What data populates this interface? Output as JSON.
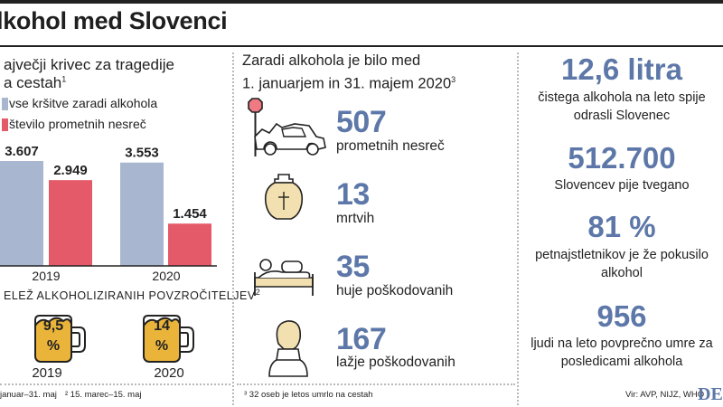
{
  "title": "lkohol med Slovenci",
  "colors": {
    "blue": "#a8b7cf",
    "red": "#e55a68",
    "accent": "#5d78a8"
  },
  "left_panel": {
    "subtitle_line1": "ajvečji krivec za tragedije",
    "subtitle_line2": "a cestah",
    "subtitle_sup": "1",
    "legend": [
      {
        "label": "vse kršitve zaradi alkohola",
        "color": "#a8b7cf"
      },
      {
        "label": "število prometnih nesreč",
        "color": "#e55a68"
      }
    ],
    "section2_title": "ELEŽ ALKOHOLIZIRANIH POVZROČITELJEV",
    "section2_sup": "2",
    "mugs": [
      {
        "value": "9,5 %",
        "year": "2019",
        "percent": 9.5
      },
      {
        "value": "14 %",
        "year": "2020",
        "percent": 14
      }
    ],
    "footnote1": "januar–31. maj",
    "footnote2": "² 15. marec–15. maj"
  },
  "chart_data": {
    "type": "bar",
    "categories": [
      "2019",
      "2020"
    ],
    "series": [
      {
        "name": "vse kršitve zaradi alkohola",
        "values": [
          3607,
          3553
        ],
        "labels": [
          "3.607",
          "3.553"
        ]
      },
      {
        "name": "število prometnih nesreč",
        "values": [
          2949,
          1454
        ],
        "labels": [
          "2.949",
          "1.454"
        ]
      }
    ],
    "ymax": 3607
  },
  "middle_panel": {
    "heading_line1": "Zaradi alkohola je bilo med",
    "heading_line2": "1. januarjem in 31. majem 2020",
    "heading_sup": "3",
    "stats": [
      {
        "value": "507",
        "label": "prometnih nesreč",
        "icon": "car-crash-icon"
      },
      {
        "value": "13",
        "label": "mrtvih",
        "icon": "urn-icon"
      },
      {
        "value": "35",
        "label": "huje poškodovanih",
        "icon": "bed-patient-icon"
      },
      {
        "value": "167",
        "label": "lažje poškodovanih",
        "icon": "neck-brace-icon"
      }
    ],
    "footnote": "³ 32 oseb je letos umrlo na cestah"
  },
  "right_panel": {
    "stats": [
      {
        "value": "12,6 litra",
        "label": "čistega alkohola na leto spije odrasli Slovenec"
      },
      {
        "value": "512.700",
        "label": "Slovencev pije tvegano"
      },
      {
        "value": "81 %",
        "label": "petnajstletnikov je že pokusilo alkohol"
      },
      {
        "value": "956",
        "label": "ljudi na leto povprečno umre za posledicami alkohola"
      }
    ],
    "source": "Vir: AVP, NIJZ, WHO",
    "brand": "DEL"
  }
}
